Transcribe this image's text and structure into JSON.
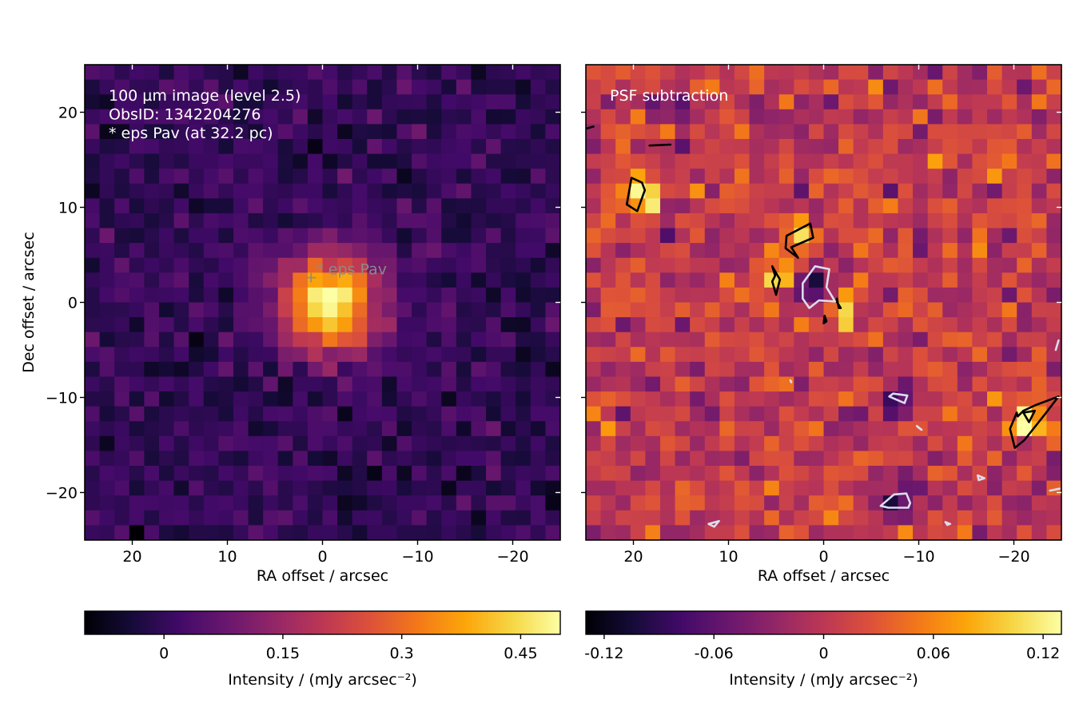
{
  "chart_data": [
    {
      "type": "heatmap",
      "panel": "left",
      "annotation_lines": [
        "100 µm image (level 2.5)",
        "ObsID: 1342204276",
        "* eps Pav (at 32.2 pc)"
      ],
      "source_label": "* eps Pav",
      "source_marker": {
        "ra": 1.2,
        "dec": 2.6
      },
      "xlabel": "RA offset / arcsec",
      "ylabel": "Dec offset / arcsec",
      "xlim": [
        25,
        -25
      ],
      "ylim": [
        -25,
        25
      ],
      "xticks": [
        20,
        10,
        0,
        -10,
        -20
      ],
      "xtick_labels": [
        "20",
        "10",
        "0",
        "−10",
        "−20"
      ],
      "yticks": [
        20,
        10,
        0,
        -10,
        -20
      ],
      "ytick_labels": [
        "20",
        "10",
        "0",
        "−10",
        "−20"
      ],
      "colormap": "inferno",
      "colorbar": {
        "label": "Intensity / (mJy arcsec⁻²)",
        "range": [
          -0.1,
          0.5
        ],
        "ticks": [
          0,
          0.15,
          0.3,
          0.45
        ],
        "tick_labels": [
          "0",
          "0.15",
          "0.3",
          "0.45"
        ]
      },
      "peak": {
        "ra": -0.8,
        "dec": -0.2,
        "value": 0.5
      },
      "background_level": 0.0
    },
    {
      "type": "heatmap",
      "panel": "right",
      "annotation_lines": [
        "PSF subtraction"
      ],
      "xlabel": "RA offset / arcsec",
      "xlim": [
        25,
        -25
      ],
      "ylim": [
        -25,
        25
      ],
      "xticks": [
        20,
        10,
        0,
        -10,
        -20
      ],
      "xtick_labels": [
        "20",
        "10",
        "0",
        "−10",
        "−20"
      ],
      "colormap": "inferno",
      "colorbar": {
        "label": "Intensity / (mJy arcsec⁻²)",
        "range": [
          -0.13,
          0.13
        ],
        "ticks": [
          -0.12,
          -0.06,
          0,
          0.06,
          0.12
        ],
        "tick_labels": [
          "-0.12",
          "-0.06",
          "0",
          "0.06",
          "0.12"
        ]
      },
      "contours": {
        "positive_color": "#000000",
        "negative_color": "#dcdcec",
        "positive": [
          [
            [
              20.2,
              13.1
            ],
            [
              19.1,
              12.6
            ],
            [
              18.8,
              11.8
            ],
            [
              19.6,
              9.6
            ],
            [
              20.7,
              10.3
            ]
          ],
          [
            [
              2.7,
              4.7
            ],
            [
              4.0,
              5.7
            ],
            [
              3.9,
              7.0
            ],
            [
              1.4,
              8.3
            ],
            [
              1.1,
              6.8
            ],
            [
              3.4,
              5.8
            ]
          ],
          [
            [
              5.4,
              3.8
            ],
            [
              5.1,
              2.8
            ],
            [
              5.4,
              2.2
            ],
            [
              5.0,
              0.8
            ],
            [
              4.6,
              2.4
            ]
          ],
          [
            [
              -1.3,
              0.2
            ],
            [
              -1.8,
              -0.6
            ],
            [
              -1.6,
              -0.6
            ],
            [
              -1.4,
              0.4
            ]
          ],
          [
            [
              -0.1,
              -1.4
            ],
            [
              0.0,
              -2.2
            ],
            [
              -0.3,
              -2.0
            ]
          ],
          [
            [
              -19.6,
              -13.3
            ],
            [
              -20.3,
              -11.6
            ],
            [
              -20.4,
              -12.0
            ],
            [
              -21.0,
              -11.4
            ],
            [
              -22.3,
              -10.8
            ],
            [
              -24.7,
              -9.9
            ],
            [
              -23.4,
              -11.6
            ],
            [
              -21.1,
              -14.5
            ],
            [
              -20.1,
              -15.3
            ]
          ],
          [
            [
              -21.0,
              -11.6
            ],
            [
              -22.2,
              -11.4
            ],
            [
              -21.6,
              -12.6
            ]
          ]
        ],
        "open_lines": [
          [
            [
              24.9,
              18.3
            ],
            [
              24.2,
              18.5
            ]
          ],
          [
            [
              18.3,
              16.5
            ],
            [
              16.1,
              16.6
            ]
          ]
        ],
        "negative": [
          [
            [
              2.2,
              2.0
            ],
            [
              0.9,
              3.8
            ],
            [
              -0.6,
              3.5
            ],
            [
              -0.3,
              1.6
            ],
            [
              -1.2,
              0.1
            ],
            [
              0.5,
              0.2
            ],
            [
              1.5,
              -0.6
            ],
            [
              2.2,
              0.4
            ]
          ],
          [
            [
              -6.9,
              -9.9
            ],
            [
              -8.5,
              -10.6
            ],
            [
              -8.8,
              -9.8
            ],
            [
              -7.3,
              -9.6
            ]
          ],
          [
            [
              -9.8,
              -13.0
            ],
            [
              -10.3,
              -13.4
            ],
            [
              -10.0,
              -13.2
            ]
          ],
          [
            [
              -6.0,
              -21.4
            ],
            [
              -7.4,
              -20.2
            ],
            [
              -8.7,
              -20.1
            ],
            [
              -9.1,
              -21.1
            ],
            [
              -8.9,
              -21.6
            ],
            [
              -6.8,
              -21.6
            ]
          ],
          [
            [
              3.5,
              -8.2
            ],
            [
              3.4,
              -8.4
            ]
          ],
          [
            [
              -16.2,
              -18.2
            ],
            [
              -16.9,
              -18.5
            ],
            [
              -16.3,
              -18.7
            ]
          ],
          [
            [
              -12.8,
              -23.1
            ],
            [
              -13.3,
              -23.3
            ],
            [
              -13.0,
              -23.4
            ]
          ],
          [
            [
              11.0,
              -23.0
            ],
            [
              12.1,
              -23.3
            ],
            [
              11.5,
              -23.6
            ]
          ],
          [
            [
              -24.7,
              -4.0
            ],
            [
              -24.4,
              -5.0
            ]
          ],
          [
            [
              -23.8,
              -19.8
            ],
            [
              -24.8,
              -19.6
            ]
          ]
        ]
      }
    }
  ]
}
